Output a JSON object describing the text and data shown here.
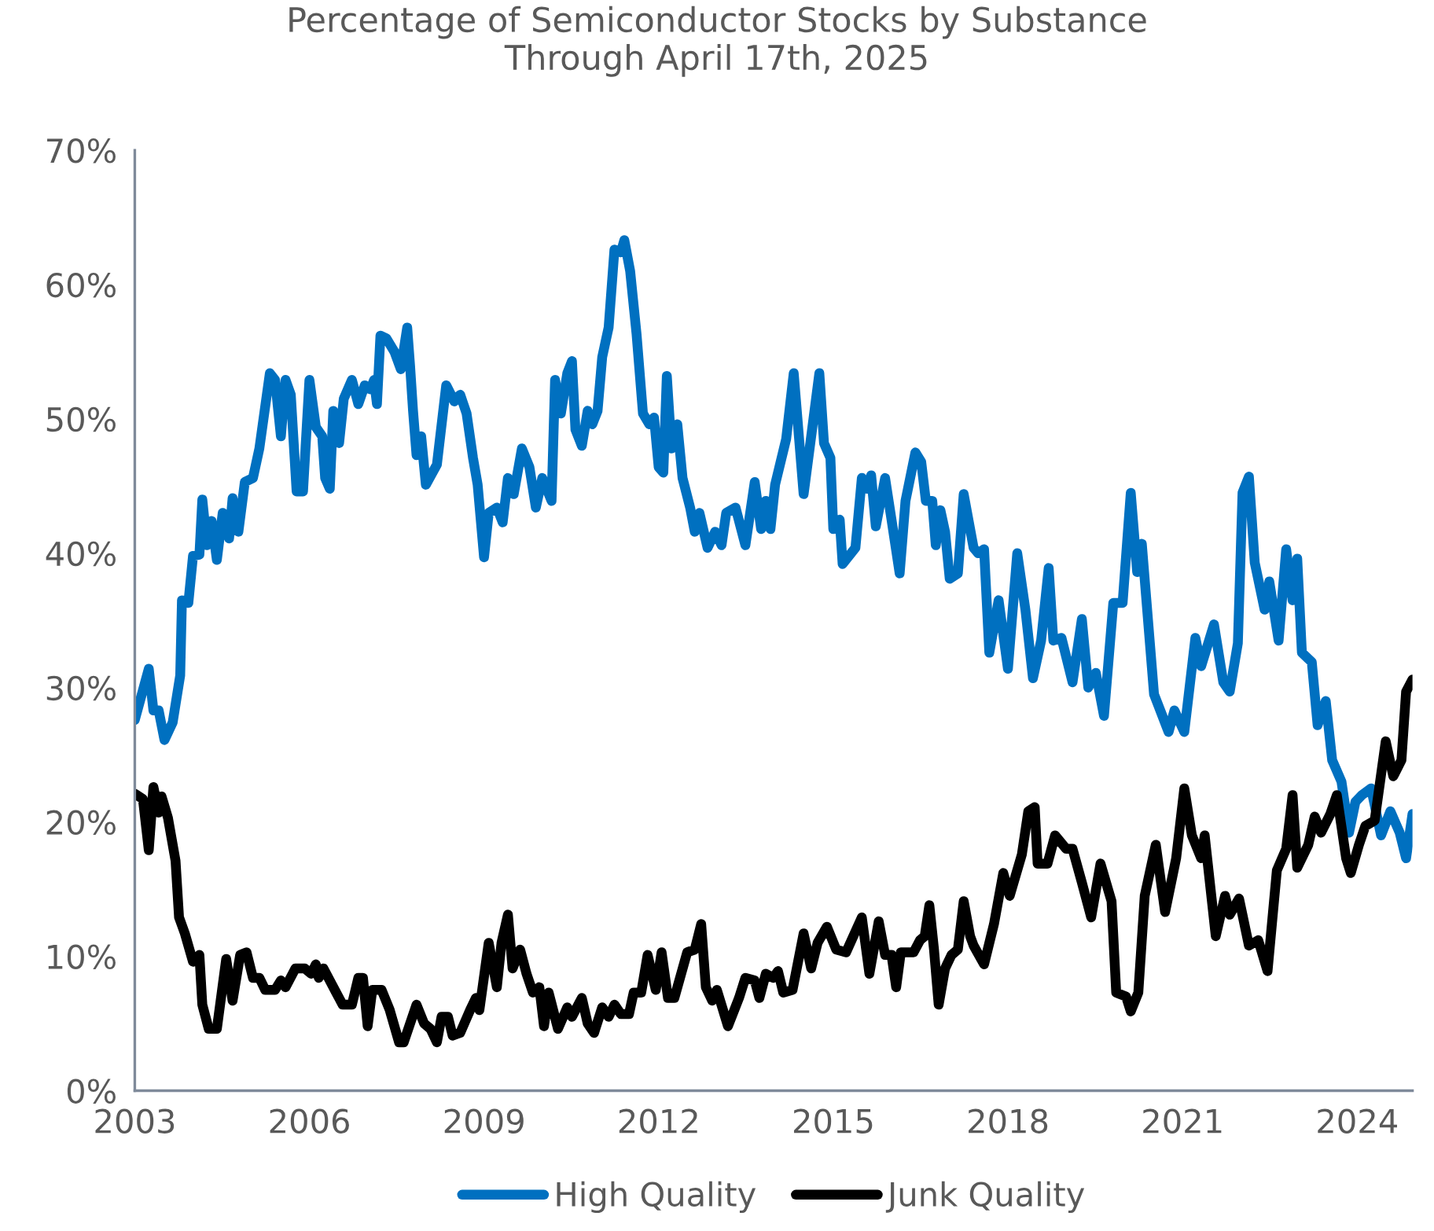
{
  "chart_data": {
    "type": "line",
    "title": "Percentage of Semiconductor Stocks by Substance\nThrough April 17th, 2025",
    "xlim": [
      2003,
      2024.95
    ],
    "xticks": [
      2003,
      2006,
      2009,
      2012,
      2015,
      2018,
      2021,
      2024
    ],
    "ylim": [
      0,
      70
    ],
    "yticks": [
      {
        "value": 0,
        "label": "0%"
      },
      {
        "value": 10,
        "label": "10%"
      },
      {
        "value": 20,
        "label": "20%"
      },
      {
        "value": 30,
        "label": "30%"
      },
      {
        "value": 40,
        "label": "40%"
      },
      {
        "value": 50,
        "label": "50%"
      },
      {
        "value": 60,
        "label": "60%"
      },
      {
        "value": 70,
        "label": "70%"
      }
    ],
    "grid": false,
    "legend": "bottom",
    "marker": "none",
    "line_style": "solid",
    "series": [
      {
        "name": "High Quality",
        "color": "#0070c0",
        "x": [
          2003.0,
          2003.24,
          2003.32,
          2003.41,
          2003.51,
          2003.65,
          2003.78,
          2003.81,
          2003.92,
          2004.0,
          2004.11,
          2004.16,
          2004.24,
          2004.32,
          2004.41,
          2004.51,
          2004.62,
          2004.68,
          2004.78,
          2004.89,
          2005.03,
          2005.14,
          2005.32,
          2005.41,
          2005.51,
          2005.59,
          2005.68,
          2005.78,
          2005.89,
          2006.0,
          2006.11,
          2006.22,
          2006.27,
          2006.35,
          2006.41,
          2006.51,
          2006.59,
          2006.73,
          2006.84,
          2006.95,
          2007.05,
          2007.11,
          2007.16,
          2007.22,
          2007.32,
          2007.46,
          2007.57,
          2007.68,
          2007.73,
          2007.78,
          2007.84,
          2007.92,
          2008.0,
          2008.19,
          2008.35,
          2008.49,
          2008.59,
          2008.7,
          2008.81,
          2008.89,
          2009.0,
          2009.08,
          2009.22,
          2009.32,
          2009.41,
          2009.51,
          2009.65,
          2009.78,
          2009.89,
          2010.0,
          2010.16,
          2010.22,
          2010.32,
          2010.43,
          2010.51,
          2010.57,
          2010.68,
          2010.78,
          2010.86,
          2010.95,
          2011.03,
          2011.14,
          2011.24,
          2011.35,
          2011.41,
          2011.51,
          2011.62,
          2011.73,
          2011.84,
          2011.92,
          2012.0,
          2012.08,
          2012.14,
          2012.22,
          2012.32,
          2012.41,
          2012.54,
          2012.62,
          2012.7,
          2012.84,
          2012.97,
          2013.08,
          2013.16,
          2013.32,
          2013.49,
          2013.65,
          2013.76,
          2013.84,
          2013.92,
          2014.0,
          2014.19,
          2014.32,
          2014.49,
          2014.62,
          2014.76,
          2014.84,
          2014.95,
          2015.0,
          2015.11,
          2015.16,
          2015.38,
          2015.49,
          2015.57,
          2015.65,
          2015.73,
          2015.89,
          2016.0,
          2016.14,
          2016.24,
          2016.41,
          2016.51,
          2016.59,
          2016.7,
          2016.76,
          2016.84,
          2016.92,
          2017.0,
          2017.14,
          2017.24,
          2017.41,
          2017.49,
          2017.59,
          2017.68,
          2017.84,
          2018.0,
          2018.16,
          2018.3,
          2018.43,
          2018.57,
          2018.7,
          2018.78,
          2018.92,
          2019.11,
          2019.27,
          2019.38,
          2019.51,
          2019.65,
          2019.81,
          2019.97,
          2020.11,
          2020.22,
          2020.3,
          2020.51,
          2020.76,
          2020.86,
          2021.03,
          2021.22,
          2021.32,
          2021.54,
          2021.7,
          2021.81,
          2021.95,
          2022.03,
          2022.14,
          2022.24,
          2022.41,
          2022.49,
          2022.65,
          2022.78,
          2022.89,
          2022.97,
          2023.05,
          2023.22,
          2023.32,
          2023.46,
          2023.57,
          2023.73,
          2023.86,
          2023.97,
          2024.08,
          2024.24,
          2024.41,
          2024.57,
          2024.73,
          2024.84,
          2024.95
        ],
        "values": [
          27.6,
          31.4,
          28.3,
          28.3,
          26.1,
          27.4,
          30.9,
          36.5,
          36.3,
          39.8,
          39.9,
          44.0,
          40.6,
          42.4,
          39.5,
          43.0,
          41.1,
          44.1,
          41.6,
          45.3,
          45.6,
          47.8,
          53.4,
          52.9,
          48.7,
          52.9,
          51.8,
          44.6,
          44.6,
          52.9,
          49.4,
          48.7,
          45.6,
          44.8,
          50.6,
          48.2,
          51.5,
          52.9,
          51.1,
          52.5,
          52.2,
          52.9,
          51.1,
          56.2,
          56.0,
          55.0,
          53.7,
          56.8,
          53.9,
          50.6,
          47.3,
          48.7,
          45.1,
          46.6,
          52.5,
          51.3,
          51.8,
          50.4,
          47.1,
          45.1,
          39.7,
          43.0,
          43.4,
          42.3,
          45.6,
          44.4,
          47.8,
          46.4,
          43.4,
          45.6,
          43.9,
          52.9,
          50.4,
          53.4,
          54.3,
          49.2,
          48.0,
          50.6,
          49.6,
          50.6,
          54.6,
          56.8,
          62.6,
          62.4,
          63.3,
          61.0,
          56.3,
          50.4,
          49.6,
          50.1,
          46.4,
          46.0,
          53.2,
          47.8,
          49.6,
          45.6,
          43.4,
          41.6,
          43.0,
          40.4,
          41.6,
          40.6,
          43.0,
          43.4,
          40.6,
          45.3,
          41.8,
          43.9,
          41.8,
          45.1,
          48.5,
          53.4,
          44.4,
          48.7,
          53.4,
          48.2,
          47.1,
          41.8,
          42.5,
          39.2,
          40.4,
          45.6,
          44.8,
          45.8,
          42.0,
          45.6,
          42.5,
          38.5,
          43.9,
          47.5,
          46.8,
          43.9,
          43.9,
          40.6,
          43.2,
          41.6,
          38.1,
          38.5,
          44.4,
          40.4,
          40.0,
          40.3,
          32.6,
          36.5,
          31.4,
          40.0,
          35.8,
          30.7,
          33.5,
          38.9,
          33.5,
          33.7,
          30.4,
          35.1,
          30.0,
          31.1,
          27.9,
          36.3,
          36.3,
          44.5,
          38.6,
          40.7,
          29.5,
          26.7,
          28.3,
          26.7,
          33.7,
          31.6,
          34.7,
          30.4,
          29.7,
          33.3,
          44.5,
          45.7,
          39.3,
          35.8,
          37.9,
          33.5,
          40.3,
          36.5,
          39.6,
          32.6,
          31.9,
          27.2,
          29.0,
          24.6,
          23.0,
          19.2,
          21.5,
          22.0,
          22.5,
          19.0,
          20.8,
          19.2,
          17.3,
          20.6
        ]
      },
      {
        "name": "Junk Quality",
        "color": "#000000",
        "x": [
          2003.0,
          2003.14,
          2003.24,
          2003.32,
          2003.41,
          2003.46,
          2003.57,
          2003.7,
          2003.76,
          2003.86,
          2004.0,
          2004.11,
          2004.16,
          2004.27,
          2004.41,
          2004.57,
          2004.68,
          2004.81,
          2004.92,
          2005.03,
          2005.14,
          2005.24,
          2005.41,
          2005.51,
          2005.59,
          2005.76,
          2005.92,
          2006.03,
          2006.11,
          2006.16,
          2006.24,
          2006.46,
          2006.57,
          2006.73,
          2006.84,
          2006.92,
          2007.0,
          2007.08,
          2007.24,
          2007.38,
          2007.54,
          2007.62,
          2007.84,
          2007.97,
          2008.08,
          2008.19,
          2008.27,
          2008.38,
          2008.46,
          2008.59,
          2008.76,
          2008.86,
          2008.92,
          2009.08,
          2009.22,
          2009.3,
          2009.41,
          2009.49,
          2009.62,
          2009.73,
          2009.84,
          2009.95,
          2010.03,
          2010.11,
          2010.27,
          2010.43,
          2010.51,
          2010.68,
          2010.78,
          2010.89,
          2011.03,
          2011.14,
          2011.24,
          2011.35,
          2011.49,
          2011.57,
          2011.7,
          2011.81,
          2011.95,
          2012.05,
          2012.16,
          2012.27,
          2012.49,
          2012.62,
          2012.73,
          2012.81,
          2012.92,
          2013.0,
          2013.19,
          2013.38,
          2013.49,
          2013.65,
          2013.73,
          2013.84,
          2013.97,
          2014.05,
          2014.14,
          2014.3,
          2014.49,
          2014.62,
          2014.73,
          2014.89,
          2015.05,
          2015.22,
          2015.49,
          2015.62,
          2015.78,
          2015.89,
          2016.0,
          2016.08,
          2016.16,
          2016.38,
          2016.49,
          2016.57,
          2016.65,
          2016.73,
          2016.81,
          2016.92,
          2017.03,
          2017.14,
          2017.24,
          2017.35,
          2017.41,
          2017.59,
          2017.76,
          2017.92,
          2018.03,
          2018.24,
          2018.35,
          2018.46,
          2018.51,
          2018.68,
          2018.81,
          2019.0,
          2019.11,
          2019.27,
          2019.43,
          2019.59,
          2019.78,
          2019.86,
          2020.03,
          2020.11,
          2020.24,
          2020.35,
          2020.54,
          2020.7,
          2020.89,
          2021.03,
          2021.16,
          2021.32,
          2021.38,
          2021.57,
          2021.73,
          2021.81,
          2021.97,
          2022.14,
          2022.3,
          2022.46,
          2022.62,
          2022.78,
          2022.89,
          2022.97,
          2023.16,
          2023.27,
          2023.38,
          2023.54,
          2023.65,
          2023.81,
          2023.89,
          2024.03,
          2024.14,
          2024.3,
          2024.49,
          2024.62,
          2024.76,
          2024.84,
          2024.95
        ],
        "values": [
          22.1,
          21.7,
          17.9,
          22.6,
          20.7,
          21.9,
          20.3,
          17.1,
          12.9,
          11.7,
          9.6,
          10.1,
          6.4,
          4.6,
          4.6,
          9.8,
          6.7,
          10.1,
          10.3,
          8.4,
          8.4,
          7.5,
          7.5,
          8.2,
          7.7,
          9.1,
          9.1,
          8.7,
          9.4,
          8.4,
          9.1,
          7.3,
          6.4,
          6.4,
          8.4,
          8.4,
          4.8,
          7.5,
          7.5,
          6.0,
          3.6,
          3.6,
          6.4,
          5.0,
          4.6,
          3.6,
          5.5,
          5.5,
          4.1,
          4.3,
          6.0,
          6.9,
          6.0,
          11.0,
          7.7,
          11.0,
          13.1,
          9.1,
          10.5,
          8.7,
          7.3,
          7.7,
          4.8,
          7.3,
          4.6,
          6.2,
          5.5,
          6.9,
          5.0,
          4.3,
          6.2,
          5.5,
          6.4,
          5.7,
          5.7,
          7.3,
          7.3,
          10.1,
          7.5,
          10.3,
          6.9,
          6.9,
          10.3,
          10.5,
          12.4,
          7.7,
          6.7,
          7.5,
          4.8,
          6.9,
          8.4,
          8.2,
          6.9,
          8.7,
          8.4,
          8.9,
          7.3,
          7.5,
          11.7,
          9.1,
          11.0,
          12.2,
          10.5,
          10.3,
          12.9,
          8.7,
          12.6,
          10.1,
          10.1,
          7.7,
          10.3,
          10.3,
          11.2,
          11.5,
          13.8,
          10.5,
          6.4,
          9.1,
          10.1,
          10.5,
          14.1,
          11.5,
          10.8,
          9.4,
          12.4,
          16.2,
          14.5,
          17.6,
          20.8,
          21.1,
          16.9,
          16.9,
          19.0,
          18.0,
          18.0,
          15.5,
          12.9,
          16.9,
          14.1,
          7.3,
          7.0,
          5.9,
          7.3,
          14.5,
          18.3,
          13.3,
          17.3,
          22.5,
          19.0,
          17.3,
          19.0,
          11.5,
          14.5,
          13.1,
          14.3,
          10.8,
          11.2,
          8.9,
          16.4,
          18.0,
          22.0,
          16.6,
          18.3,
          20.4,
          19.2,
          20.6,
          22.0,
          17.3,
          16.2,
          18.3,
          19.7,
          20.1,
          26.0,
          23.4,
          24.6,
          29.7,
          30.6
        ]
      }
    ]
  }
}
